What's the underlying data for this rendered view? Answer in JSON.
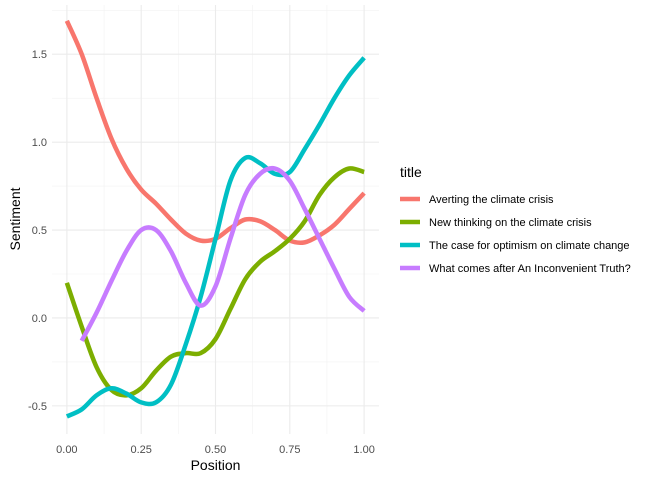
{
  "chart_data": {
    "type": "line",
    "xlabel": "Position",
    "ylabel": "Sentiment",
    "xlim": [
      -0.05,
      1.05
    ],
    "ylim": [
      -0.66,
      1.78
    ],
    "x_ticks": [
      0.0,
      0.25,
      0.5,
      0.75,
      1.0
    ],
    "x_tick_labels": [
      "0.00",
      "0.25",
      "0.50",
      "0.75",
      "1.00"
    ],
    "y_ticks": [
      -0.5,
      0.0,
      0.5,
      1.0,
      1.5
    ],
    "y_tick_labels": [
      "-0.5",
      "0.0",
      "0.5",
      "1.0",
      "1.5"
    ],
    "grid": true,
    "legend": {
      "title": "title",
      "position": "right"
    },
    "series": [
      {
        "name": "Averting the climate crisis",
        "color": "#F8766D",
        "x": [
          0.0,
          0.05,
          0.1,
          0.15,
          0.2,
          0.25,
          0.3,
          0.35,
          0.4,
          0.45,
          0.5,
          0.55,
          0.6,
          0.65,
          0.7,
          0.75,
          0.8,
          0.85,
          0.9,
          0.95,
          1.0
        ],
        "y": [
          1.69,
          1.5,
          1.25,
          1.02,
          0.85,
          0.73,
          0.65,
          0.56,
          0.48,
          0.44,
          0.45,
          0.51,
          0.56,
          0.55,
          0.5,
          0.44,
          0.43,
          0.47,
          0.53,
          0.62,
          0.71
        ]
      },
      {
        "name": "New thinking on the climate crisis",
        "color": "#7CAE00",
        "x": [
          0.0,
          0.05,
          0.1,
          0.15,
          0.2,
          0.25,
          0.3,
          0.35,
          0.4,
          0.45,
          0.5,
          0.55,
          0.6,
          0.65,
          0.7,
          0.75,
          0.8,
          0.85,
          0.9,
          0.95,
          1.0
        ],
        "y": [
          0.2,
          -0.05,
          -0.28,
          -0.41,
          -0.44,
          -0.4,
          -0.3,
          -0.22,
          -0.2,
          -0.2,
          -0.12,
          0.05,
          0.22,
          0.32,
          0.38,
          0.45,
          0.55,
          0.7,
          0.8,
          0.85,
          0.83
        ]
      },
      {
        "name": "The case for optimism on climate change",
        "color": "#00BFC4",
        "x": [
          0.0,
          0.05,
          0.1,
          0.15,
          0.2,
          0.25,
          0.3,
          0.35,
          0.4,
          0.45,
          0.5,
          0.55,
          0.6,
          0.65,
          0.7,
          0.75,
          0.8,
          0.85,
          0.9,
          0.95,
          1.0
        ],
        "y": [
          -0.56,
          -0.52,
          -0.44,
          -0.4,
          -0.43,
          -0.48,
          -0.48,
          -0.38,
          -0.15,
          0.12,
          0.45,
          0.78,
          0.91,
          0.88,
          0.82,
          0.83,
          0.96,
          1.1,
          1.25,
          1.38,
          1.48
        ]
      },
      {
        "name": "What comes after An Inconvenient Truth?",
        "color": "#C77CFF",
        "x": [
          0.05,
          0.1,
          0.15,
          0.2,
          0.25,
          0.3,
          0.35,
          0.4,
          0.45,
          0.5,
          0.55,
          0.6,
          0.65,
          0.7,
          0.75,
          0.8,
          0.85,
          0.9,
          0.95,
          1.0
        ],
        "y": [
          -0.13,
          0.03,
          0.21,
          0.38,
          0.5,
          0.5,
          0.38,
          0.2,
          0.07,
          0.18,
          0.45,
          0.7,
          0.82,
          0.85,
          0.78,
          0.62,
          0.45,
          0.28,
          0.12,
          0.04
        ]
      }
    ]
  }
}
